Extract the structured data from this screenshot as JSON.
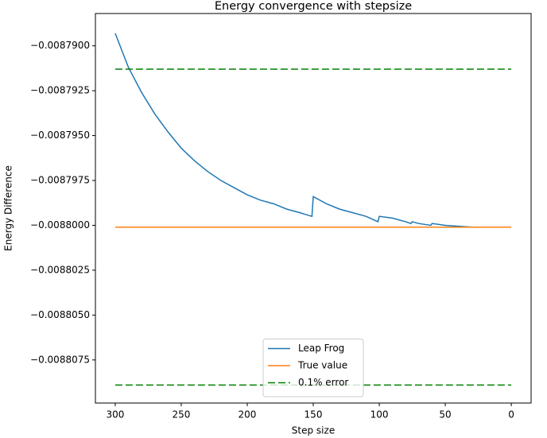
{
  "chart_data": {
    "type": "line",
    "title": "Energy convergence with stepsize",
    "xlabel": "Step size",
    "ylabel": "Energy Difference",
    "xlim": [
      315,
      -15
    ],
    "ylim": [
      -0.0087882,
      -0.0088099
    ],
    "xticks": [
      300,
      250,
      200,
      150,
      100,
      50,
      0
    ],
    "yticks": [
      {
        "value": -0.00879,
        "label": "−0.0087900"
      },
      {
        "value": -0.0087925,
        "label": "−0.0087925"
      },
      {
        "value": -0.008795,
        "label": "−0.0087950"
      },
      {
        "value": -0.0087975,
        "label": "−0.0087975"
      },
      {
        "value": -0.0088,
        "label": "−0.0088000"
      },
      {
        "value": -0.0088025,
        "label": "−0.0088025"
      },
      {
        "value": -0.008805,
        "label": "−0.0088050"
      },
      {
        "value": -0.0088075,
        "label": "−0.0088075"
      }
    ],
    "legend": "lower center",
    "series": [
      {
        "name": "Leap Frog",
        "color": "#1f77b4",
        "style": "solid",
        "x": [
          300,
          290,
          280,
          270,
          260,
          250,
          240,
          230,
          220,
          210,
          200,
          190,
          180,
          170,
          160,
          151,
          150,
          140,
          130,
          120,
          110,
          101,
          100,
          90,
          80,
          76,
          75,
          70,
          61,
          60,
          50,
          40,
          30,
          20,
          10,
          1
        ],
        "values": [
          -0.0087893,
          -0.0087912,
          -0.0087926,
          -0.0087938,
          -0.0087948,
          -0.0087957,
          -0.0087964,
          -0.008797,
          -0.0087975,
          -0.0087979,
          -0.0087983,
          -0.0087986,
          -0.0087988,
          -0.0087991,
          -0.0087993,
          -0.0087995,
          -0.0087984,
          -0.0087988,
          -0.0087991,
          -0.0087993,
          -0.0087995,
          -0.0087998,
          -0.0087995,
          -0.0087996,
          -0.0087998,
          -0.0087999,
          -0.0087998,
          -0.0087999,
          -0.0088,
          -0.0087999,
          -0.0088,
          -0.00880005,
          -0.0088001,
          -0.0088001,
          -0.0088001,
          -0.0088001
        ]
      },
      {
        "name": "True value",
        "color": "#ff7f0e",
        "style": "solid",
        "x": [
          300,
          0
        ],
        "values": [
          -0.0088001,
          -0.0088001
        ]
      },
      {
        "name": "0.1% error",
        "color": "#008000",
        "style": "dashed",
        "kind": "hlines",
        "x": [
          300,
          0
        ],
        "values": [
          -0.0087913,
          -0.0088089
        ]
      }
    ]
  }
}
